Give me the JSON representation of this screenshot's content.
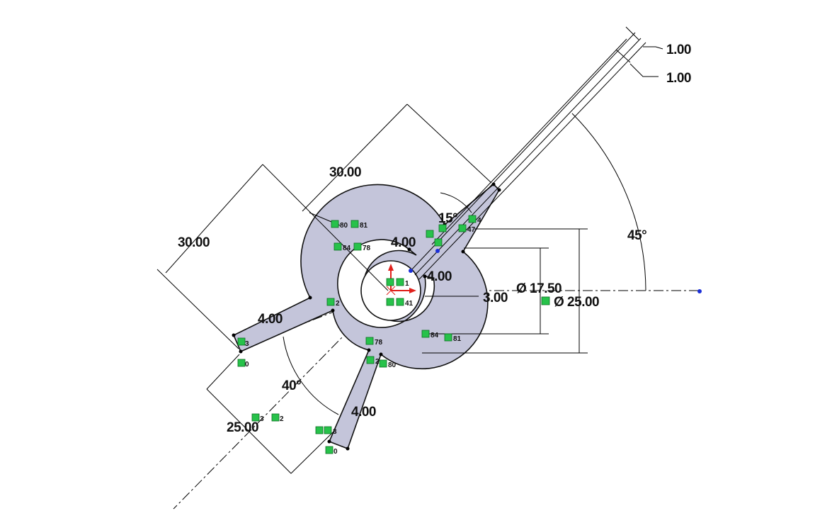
{
  "colors": {
    "part_fill": "#c4c5da",
    "relation_badge": "#27c24a",
    "origin_arrow": "#e0201b",
    "sketch_point": "#1b2fd8"
  },
  "dimensions": {
    "thickness_top": "1.00",
    "thickness_bottom": "1.00",
    "angle_45": "45°",
    "length_30_upper": "30.00",
    "length_30_left": "30.00",
    "angle_15": "15°",
    "width_4_center": "4.00",
    "width_4_right": "4.00",
    "width_4_left": "4.00",
    "width_4_lower": "4.00",
    "offset_3": "3.00",
    "diameter_17_5": "Ø 17.50",
    "diameter_25": "Ø 25.00",
    "angle_40": "40°",
    "length_25": "25.00"
  },
  "relations": {
    "r_80_top": "80",
    "r_81_top": "81",
    "r_84_top": "84",
    "r_78_top": "78",
    "r_1_origin": "1",
    "r_41_origin": "41",
    "r_2_left": "2",
    "r_3_left": "3",
    "r_0_left": "0",
    "r_78_bottom": "78",
    "r_84_bottom": "84",
    "r_81_bottom": "81",
    "r_2_lower": "2",
    "r_80_lower": "80",
    "r_3_mid": "3",
    "r_2_mid": "2",
    "r_3_lower": "3",
    "r_0_lower": "0",
    "r_47_top": "47",
    "r_4_top": "4"
  }
}
